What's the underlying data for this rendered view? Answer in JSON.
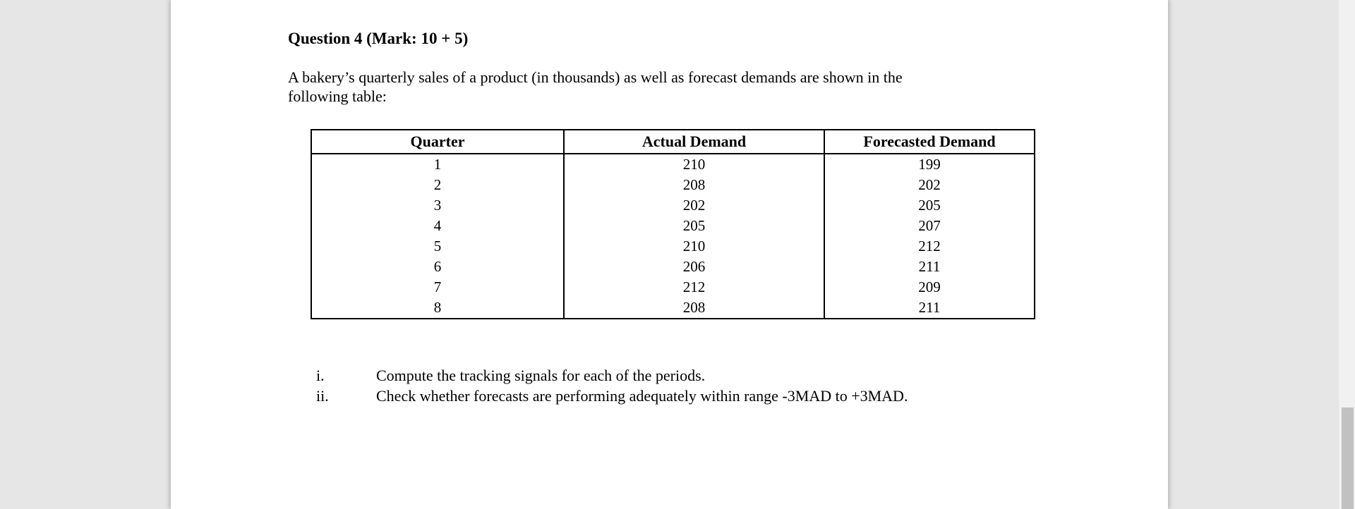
{
  "colors": {
    "viewer_background": "#e6e6e6",
    "page_background": "#ffffff",
    "text": "#000000",
    "table_border": "#000000",
    "scrollbar_track": "#f1f1f1",
    "scrollbar_thumb": "#c1c1c1"
  },
  "document": {
    "title": "Question 4 (Mark: 10 + 5)",
    "paragraph_lines": [
      "A bakery’s quarterly sales of a product (in thousands) as well as forecast demands are shown in the",
      "following table:"
    ],
    "table": {
      "headers": [
        "Quarter",
        "Actual Demand",
        "Forecasted Demand"
      ],
      "rows": [
        [
          "1",
          "210",
          "199"
        ],
        [
          "2",
          "208",
          "202"
        ],
        [
          "3",
          "202",
          "205"
        ],
        [
          "4",
          "205",
          "207"
        ],
        [
          "5",
          "210",
          "212"
        ],
        [
          "6",
          "206",
          "211"
        ],
        [
          "7",
          "212",
          "209"
        ],
        [
          "8",
          "208",
          "211"
        ]
      ]
    },
    "tasks": [
      {
        "marker": "i.",
        "text": "Compute the tracking signals for each of the periods."
      },
      {
        "marker": "ii.",
        "text": "Check whether forecasts are performing adequately within range -3MAD to +3MAD."
      }
    ]
  }
}
